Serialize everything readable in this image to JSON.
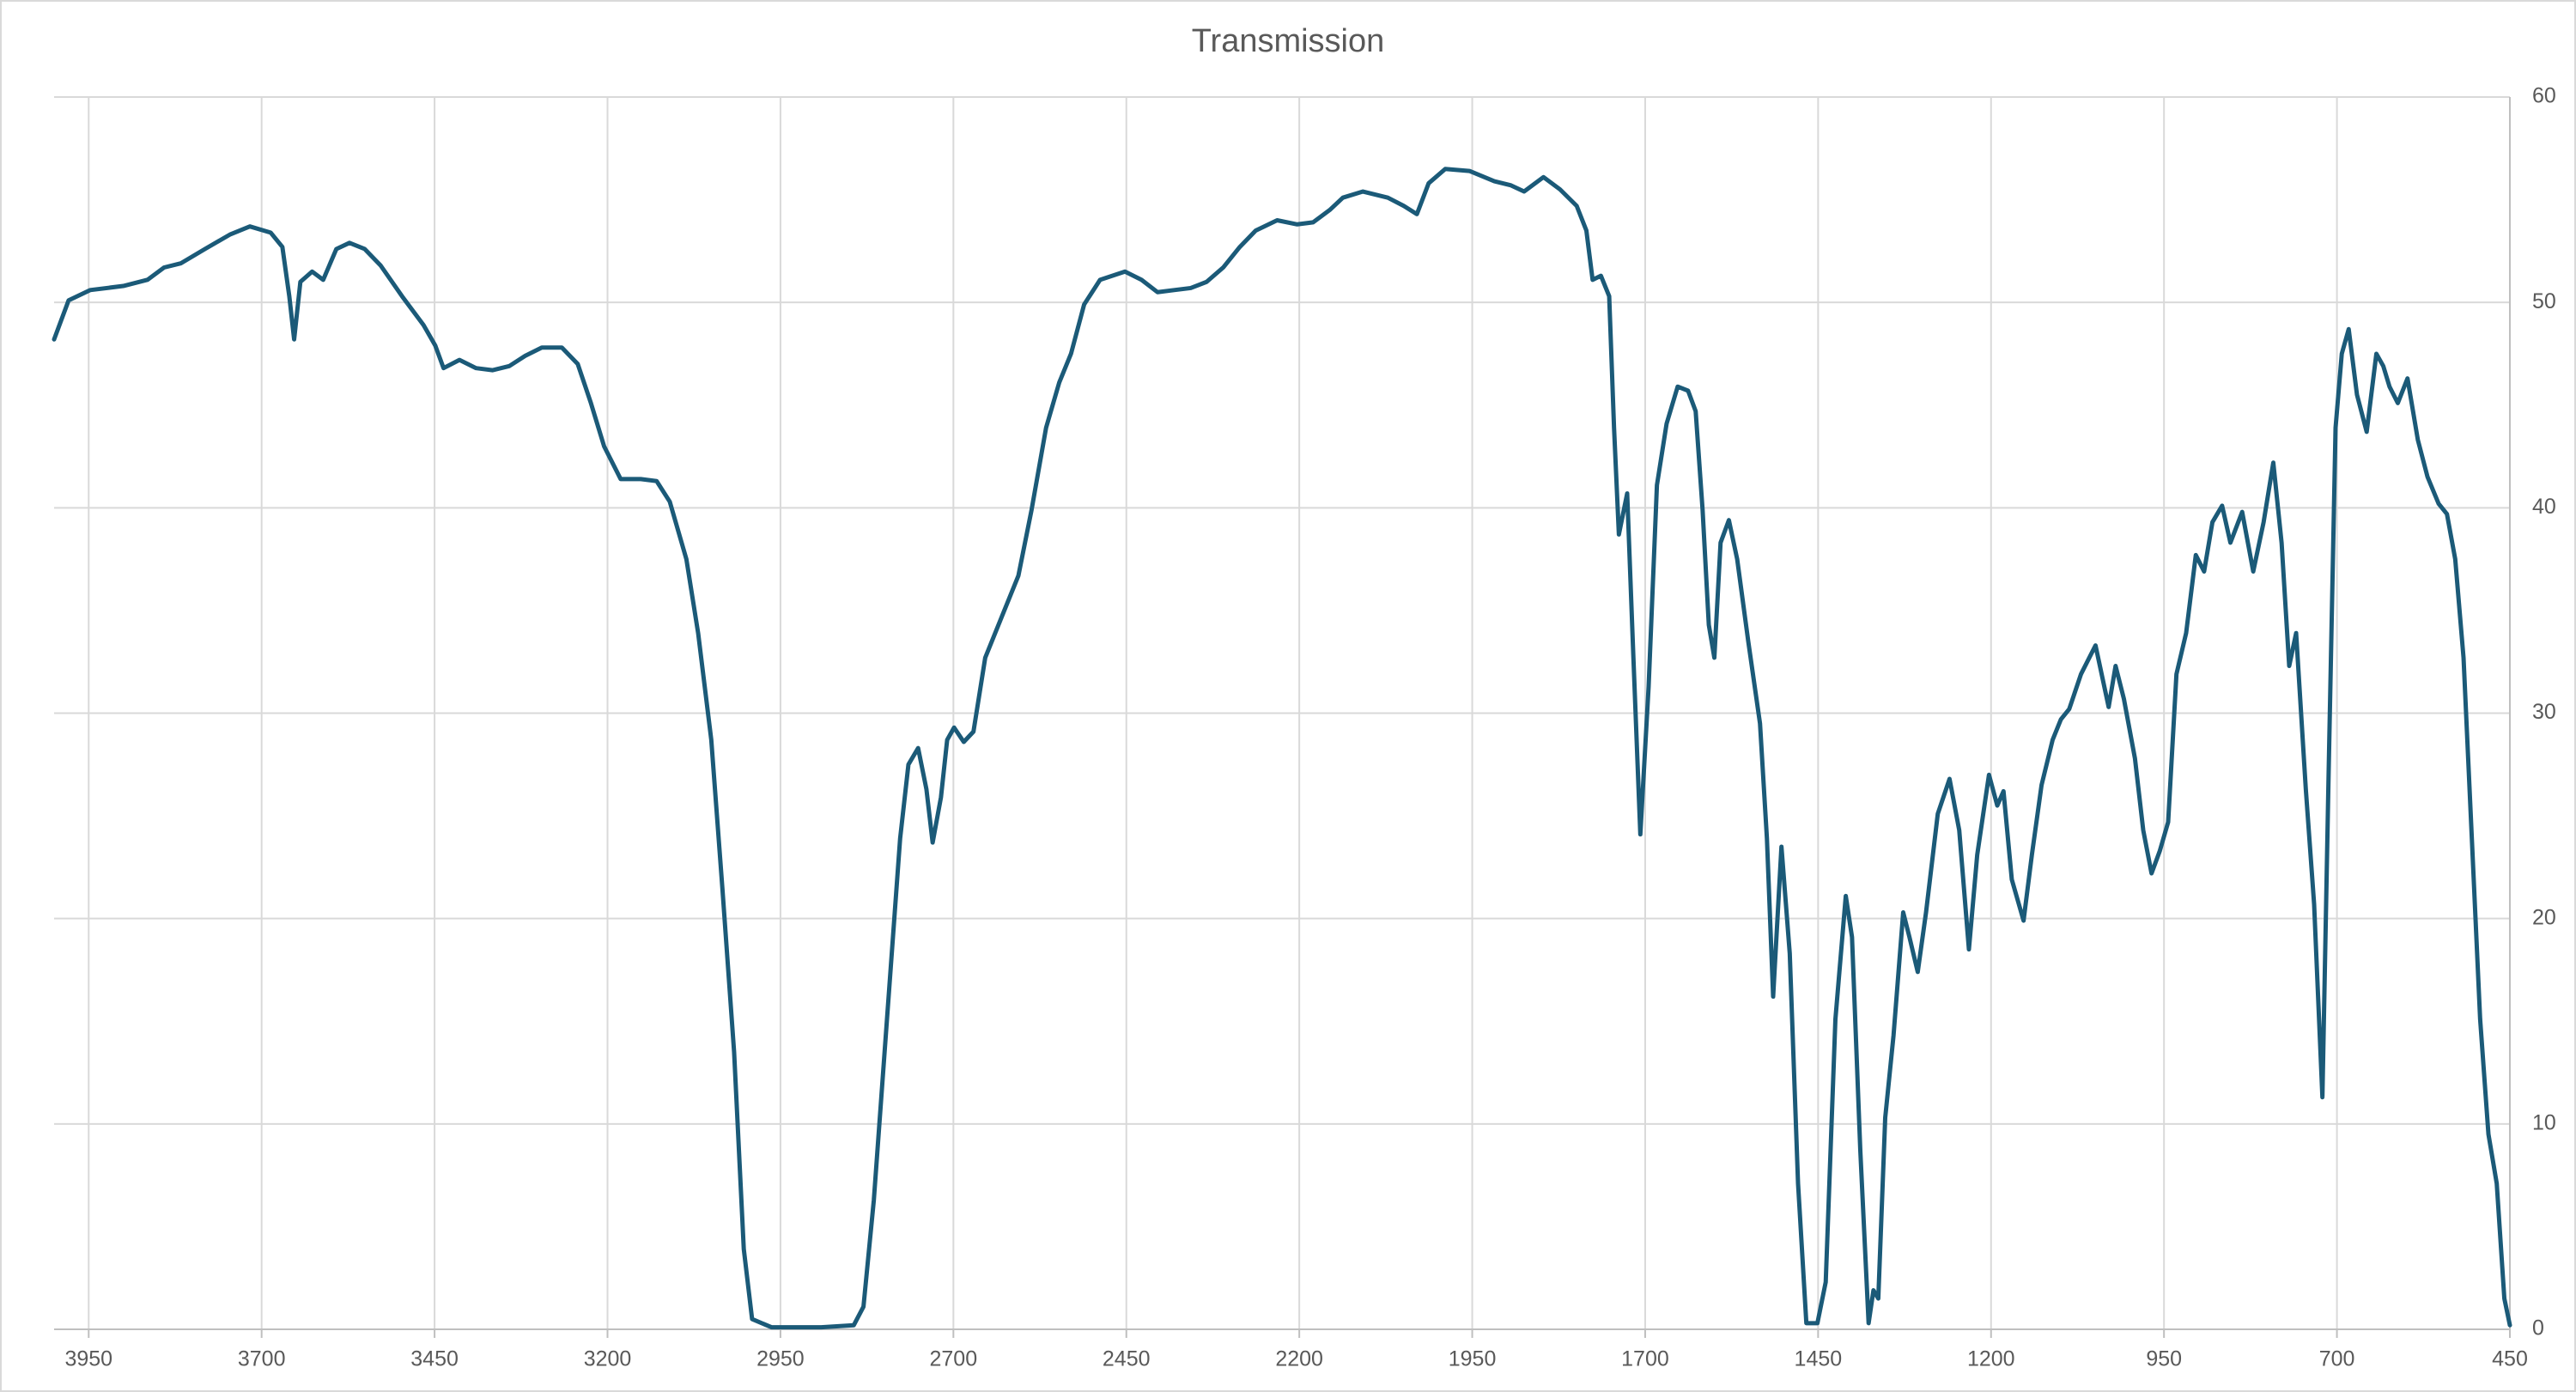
{
  "chart_data": {
    "type": "line",
    "title": "Transmission",
    "color": "#1b5a78",
    "grid": true,
    "yaxis_position": "right",
    "xlim": [
      4000,
      450
    ],
    "xticks": [
      3950,
      3700,
      3450,
      3200,
      2950,
      2700,
      2450,
      2200,
      1950,
      1700,
      1450,
      1200,
      950,
      700,
      450
    ],
    "ylim": [
      0,
      60
    ],
    "yticks": [
      0,
      10,
      20,
      30,
      40,
      50,
      60
    ],
    "x": [
      4000,
      3979,
      3948,
      3900,
      3865,
      3841,
      3817,
      3782,
      3746,
      3717,
      3687,
      3670,
      3660,
      3653,
      3644,
      3627,
      3611,
      3592,
      3573,
      3551,
      3528,
      3497,
      3466,
      3449,
      3437,
      3414,
      3390,
      3366,
      3342,
      3319,
      3295,
      3266,
      3243,
      3224,
      3205,
      3181,
      3152,
      3129,
      3110,
      3086,
      3069,
      3050,
      3034,
      3017,
      3003,
      2991,
      2963,
      2891,
      2844,
      2830,
      2815,
      2796,
      2777,
      2765,
      2751,
      2739,
      2730,
      2718,
      2709,
      2699,
      2685,
      2671,
      2654,
      2630,
      2606,
      2587,
      2566,
      2547,
      2530,
      2511,
      2488,
      2452,
      2428,
      2405,
      2381,
      2357,
      2334,
      2310,
      2286,
      2263,
      2232,
      2203,
      2180,
      2156,
      2137,
      2108,
      2072,
      2049,
      2030,
      2013,
      1989,
      1954,
      1918,
      1894,
      1875,
      1847,
      1823,
      1799,
      1785,
      1776,
      1764,
      1752,
      1745,
      1738,
      1726,
      1717,
      1707,
      1695,
      1683,
      1669,
      1653,
      1638,
      1627,
      1617,
      1608,
      1600,
      1591,
      1579,
      1567,
      1551,
      1534,
      1524,
      1515,
      1503,
      1491,
      1479,
      1467,
      1451,
      1439,
      1425,
      1410,
      1401,
      1389,
      1377,
      1370,
      1363,
      1353,
      1341,
      1327,
      1318,
      1306,
      1294,
      1277,
      1260,
      1246,
      1232,
      1220,
      1203,
      1191,
      1182,
      1170,
      1153,
      1141,
      1127,
      1111,
      1099,
      1087,
      1070,
      1049,
      1030,
      1020,
      1008,
      992,
      980,
      968,
      956,
      944,
      932,
      918,
      904,
      892,
      880,
      866,
      854,
      837,
      821,
      806,
      792,
      780,
      769,
      759,
      745,
      733,
      721,
      712,
      702,
      693,
      683,
      671,
      657,
      643,
      633,
      624,
      612,
      598,
      583,
      569,
      553,
      541,
      529,
      517,
      505,
      493,
      481,
      469,
      458,
      450
    ],
    "values": [
      48.2,
      50.1,
      50.6,
      50.8,
      51.1,
      51.7,
      51.9,
      52.6,
      53.3,
      53.7,
      53.4,
      52.7,
      50.3,
      48.2,
      51.0,
      51.5,
      51.1,
      52.6,
      52.9,
      52.6,
      51.8,
      50.3,
      48.9,
      47.9,
      46.8,
      47.2,
      46.8,
      46.7,
      46.9,
      47.4,
      47.8,
      47.8,
      47.0,
      45.1,
      43.0,
      41.4,
      41.4,
      41.3,
      40.3,
      37.5,
      33.9,
      28.7,
      21.5,
      13.5,
      3.9,
      0.5,
      0.1,
      0.1,
      0.2,
      1.1,
      6.3,
      15.1,
      23.9,
      27.5,
      28.3,
      26.3,
      23.7,
      25.9,
      28.7,
      29.3,
      28.6,
      29.1,
      32.7,
      34.7,
      36.7,
      39.9,
      43.9,
      46.1,
      47.5,
      49.9,
      51.1,
      51.5,
      51.1,
      50.5,
      50.6,
      50.7,
      51.0,
      51.7,
      52.7,
      53.5,
      54.0,
      53.8,
      53.9,
      54.5,
      55.1,
      55.4,
      55.1,
      54.7,
      54.3,
      55.8,
      56.5,
      56.4,
      55.9,
      55.7,
      55.4,
      56.1,
      55.5,
      54.7,
      53.5,
      51.1,
      51.3,
      50.3,
      43.9,
      38.7,
      40.7,
      32.7,
      24.1,
      31.3,
      41.1,
      44.1,
      45.9,
      45.7,
      44.7,
      39.9,
      34.3,
      32.7,
      38.3,
      39.4,
      37.5,
      33.5,
      29.5,
      23.9,
      16.2,
      23.5,
      18.3,
      7.1,
      0.3,
      0.3,
      2.3,
      15.1,
      21.1,
      19.1,
      8.7,
      0.3,
      1.9,
      1.5,
      10.3,
      14.3,
      20.3,
      19.1,
      17.4,
      20.3,
      25.1,
      26.8,
      24.3,
      18.5,
      23.1,
      27.0,
      25.5,
      26.2,
      21.9,
      19.9,
      23.1,
      26.5,
      28.7,
      29.7,
      30.2,
      31.9,
      33.3,
      30.3,
      32.3,
      30.7,
      27.8,
      24.3,
      22.2,
      23.3,
      24.7,
      31.9,
      33.9,
      37.7,
      36.9,
      39.3,
      40.1,
      38.3,
      39.8,
      36.9,
      39.3,
      42.2,
      38.3,
      32.3,
      33.9,
      26.3,
      20.7,
      11.3,
      27.1,
      43.9,
      47.5,
      48.7,
      45.5,
      43.7,
      47.5,
      46.9,
      45.9,
      45.1,
      46.3,
      43.3,
      41.5,
      40.2,
      39.7,
      37.5,
      32.7,
      23.9,
      15.1,
      9.5,
      7.1,
      1.5,
      0.2
    ]
  }
}
